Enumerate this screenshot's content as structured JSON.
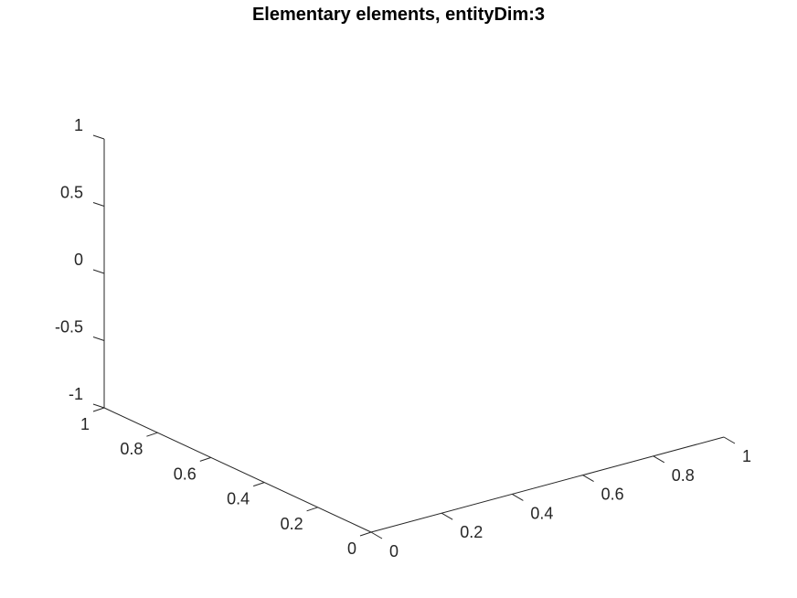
{
  "chart_data": {
    "type": "scatter",
    "title": "Elementary elements, entityDim:3",
    "xlabel": "",
    "ylabel": "",
    "zlabel": "",
    "xlim": [
      0,
      1
    ],
    "ylim": [
      0,
      1
    ],
    "zlim": [
      -1,
      1
    ],
    "x_ticks": [
      0,
      0.2,
      0.4,
      0.6,
      0.8,
      1
    ],
    "x_tick_labels": [
      "0",
      "0.2",
      "0.4",
      "0.6",
      "0.8",
      "1"
    ],
    "y_ticks": [
      0,
      0.2,
      0.4,
      0.6,
      0.8,
      1
    ],
    "y_tick_labels": [
      "0",
      "0.2",
      "0.4",
      "0.6",
      "0.8",
      "1"
    ],
    "z_ticks": [
      -1,
      -0.5,
      0,
      0.5,
      1
    ],
    "z_tick_labels": [
      "-1",
      "-0.5",
      "0",
      "0.5",
      "1"
    ],
    "series": [],
    "grid": false,
    "legend": "none"
  }
}
